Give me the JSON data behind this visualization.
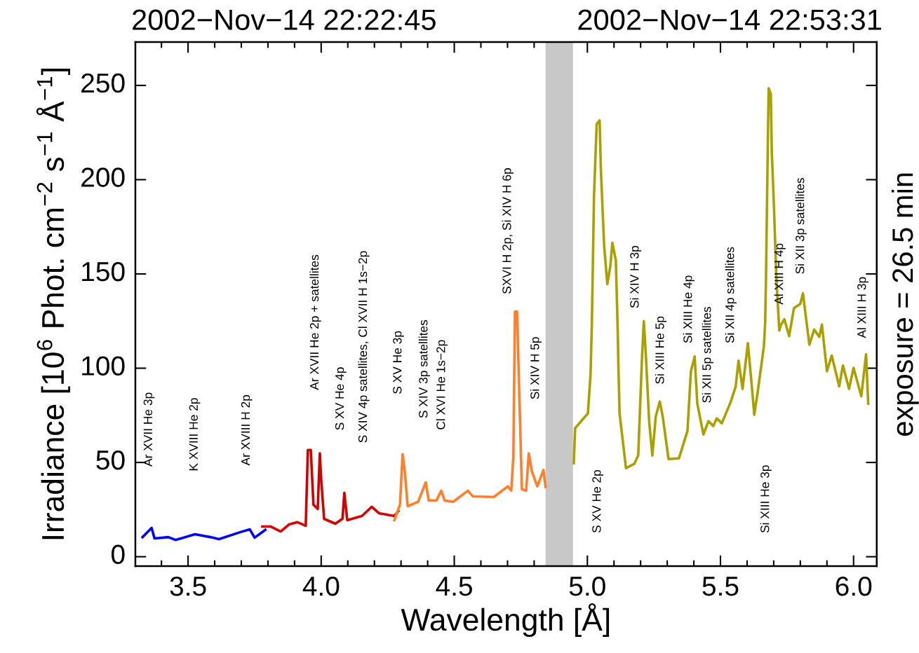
{
  "chart_data": {
    "type": "line",
    "title": "2002−Nov−14 22:22:45",
    "subtitle": "2002−Nov−14 22:53:31",
    "xlabel": "Wavelength [Å]",
    "ylabel": "Irradiance [10$^{6}$ Phot. cm$^{−2}$ s$^{−1}$ Å$^{−1}$]",
    "xlim": [
      3.302,
      6.087
    ],
    "ylim": [
      -5,
      273
    ],
    "xticks": [
      3.5,
      {
        "value": 4,
        "label": "4.0"
      },
      4.5,
      {
        "value": 5,
        "label": "5.0"
      },
      5.5,
      {
        "value": 6,
        "label": "6.0"
      }
    ],
    "yticks": [
      0,
      50,
      100,
      150,
      200,
      250
    ],
    "grid": false,
    "marker": "none",
    "line_style": "solid",
    "bands": [
      {
        "axis": "x",
        "from": 4.843,
        "to": 4.946,
        "color": "#c8c8c8"
      }
    ],
    "series": [
      {
        "color": "#0000ff",
        "x": [
          3.329,
          3.363,
          3.374,
          3.426,
          3.453,
          3.526,
          3.584,
          3.616,
          3.695,
          3.732,
          3.75,
          3.79
        ],
        "values": [
          10.4,
          15.3,
          9.7,
          10.4,
          8.9,
          11.9,
          10.4,
          9.3,
          13.0,
          14.5,
          10.1,
          14.2
        ]
      },
      {
        "color": "#d40000",
        "x": [
          3.779,
          3.811,
          3.848,
          3.879,
          3.911,
          3.942,
          3.95,
          3.961,
          3.971,
          3.987,
          3.995,
          4.0,
          4.011,
          4.053,
          4.08,
          4.087,
          4.098,
          4.153,
          4.19,
          4.217,
          4.275,
          4.29
        ],
        "values": [
          16.0,
          16.0,
          13.4,
          17.1,
          18.3,
          16.4,
          56.6,
          56.6,
          27.6,
          25.3,
          54.8,
          41,
          20.1,
          17.5,
          20.1,
          33.9,
          19.4,
          21.6,
          26.5,
          23.1,
          21.6,
          24.2
        ]
      },
      {
        "color": "#ff7f2a",
        "x": [
          4.275,
          4.296,
          4.306,
          4.314,
          4.325,
          4.364,
          4.393,
          4.404,
          4.433,
          4.451,
          4.464,
          4.496,
          4.551,
          4.57,
          4.649,
          4.701,
          4.714,
          4.722,
          4.728,
          4.736,
          4.743,
          4.754,
          4.77,
          4.78,
          4.791,
          4.812,
          4.835,
          4.843
        ],
        "values": [
          19.4,
          27.6,
          54.4,
          45.5,
          26.8,
          29.1,
          39.5,
          29.8,
          29.8,
          35.0,
          29.8,
          29.1,
          35.0,
          32.0,
          31.7,
          37.3,
          35,
          52.9,
          130,
          130,
          93.1,
          35.8,
          35,
          54.8,
          45.5,
          37.3,
          46,
          37
        ]
      },
      {
        "color": "#aaa000",
        "x": [
          4.949,
          4.954,
          4.981,
          5.002,
          5.012,
          5.017,
          5.025,
          5.035,
          5.046,
          5.051,
          5.063,
          5.075,
          5.086,
          5.094,
          5.107,
          5.114,
          5.117,
          5.121,
          5.145,
          5.176,
          5.191,
          5.205,
          5.212,
          5.22,
          5.232,
          5.244,
          5.257,
          5.272,
          5.283,
          5.305,
          5.344,
          5.376,
          5.389,
          5.403,
          5.413,
          5.436,
          5.455,
          5.473,
          5.486,
          5.505,
          5.539,
          5.557,
          5.568,
          5.583,
          5.603,
          5.617,
          5.627,
          5.64,
          5.663,
          5.668,
          5.671,
          5.676,
          5.681,
          5.689,
          5.693,
          5.701,
          5.71,
          5.721,
          5.726,
          5.74,
          5.758,
          5.776,
          5.8,
          5.81,
          5.821,
          5.834,
          5.852,
          5.871,
          5.881,
          5.9,
          5.918,
          5.946,
          5.96,
          5.983,
          6.0,
          6.029,
          6.047,
          6.055
        ],
        "values": [
          49.6,
          68.2,
          72.6,
          76,
          96.9,
          124.4,
          191.9,
          229.5,
          231.4,
          204.5,
          165,
          144.6,
          153.9,
          166.5,
          157.2,
          120,
          98.4,
          76,
          47,
          49.2,
          53.7,
          104.7,
          125,
          106.2,
          71.9,
          53.7,
          74.5,
          82.3,
          74.5,
          51.8,
          52.2,
          66.7,
          98.4,
          106.2,
          81.2,
          64.8,
          71.9,
          69.3,
          73.4,
          70.8,
          82.3,
          90.2,
          104,
          89,
          113.3,
          91.7,
          75.3,
          87.6,
          111.4,
          124.4,
          147.5,
          199.7,
          248.5,
          245.5,
          213.9,
          185.5,
          147.5,
          120,
          122.6,
          126,
          117,
          131.9,
          134.1,
          139.7,
          127,
          112.5,
          120.5,
          116.6,
          123.1,
          98.4,
          106.7,
          90.4,
          101.5,
          89,
          100.2,
          85.1,
          107.4,
          81.2
        ]
      }
    ],
    "annotations": [
      "Ar XVII He 3p",
      "K XVIII He 2p",
      "Ar XVIII H 2p",
      "Ar XVII He 2p + satellites",
      "S XV He 4p",
      "S XIV 4p satellites, Cl XVII H 1s−2p",
      "S XV He 3p",
      "S XIV 3p satellites",
      "Cl XVI He 1s−2p",
      "SXVI H 2p, Si XIV H 6p",
      "Si XIV H 5p",
      "S XV He 2p",
      "Si XIV H 3p",
      "Si XIII He 5p",
      "Si XIII He 4p",
      "Si XII 5p satellites",
      "Si XII 4p satellites",
      "Si XIII He 3p",
      "Al XIII H 4p",
      "Si XII 3p satellites",
      "Al XIII H 3p",
      "exposure = 26.5 min"
    ]
  }
}
